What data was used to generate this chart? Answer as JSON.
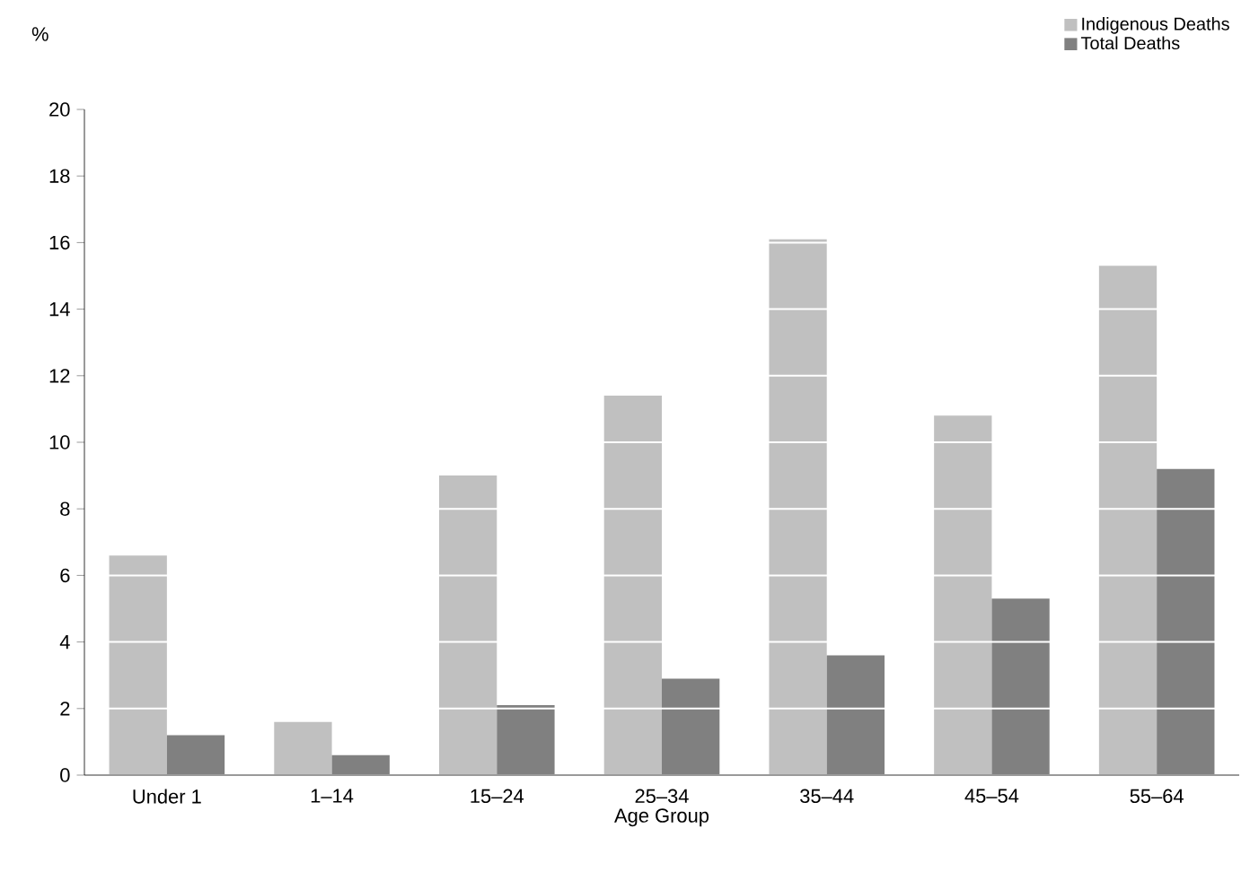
{
  "chart_data": {
    "type": "bar",
    "xlabel": "Age Group",
    "ylabel": "%",
    "categories": [
      "Under 1",
      "1–14",
      "15–24",
      "25–34",
      "35–44",
      "45–54",
      "55–64"
    ],
    "series": [
      {
        "name": "Indigenous Deaths",
        "color": "#c0c0c0",
        "values": [
          6.6,
          1.6,
          9.0,
          11.4,
          16.1,
          10.8,
          15.3
        ]
      },
      {
        "name": "Total Deaths",
        "color": "#808080",
        "values": [
          1.2,
          0.6,
          2.1,
          2.9,
          3.6,
          5.3,
          9.2
        ]
      }
    ],
    "ylim": [
      0,
      20
    ],
    "yticks": [
      0,
      2,
      4,
      6,
      8,
      10,
      12,
      14,
      16,
      18,
      20
    ],
    "grid": "y",
    "legend": "top right"
  }
}
